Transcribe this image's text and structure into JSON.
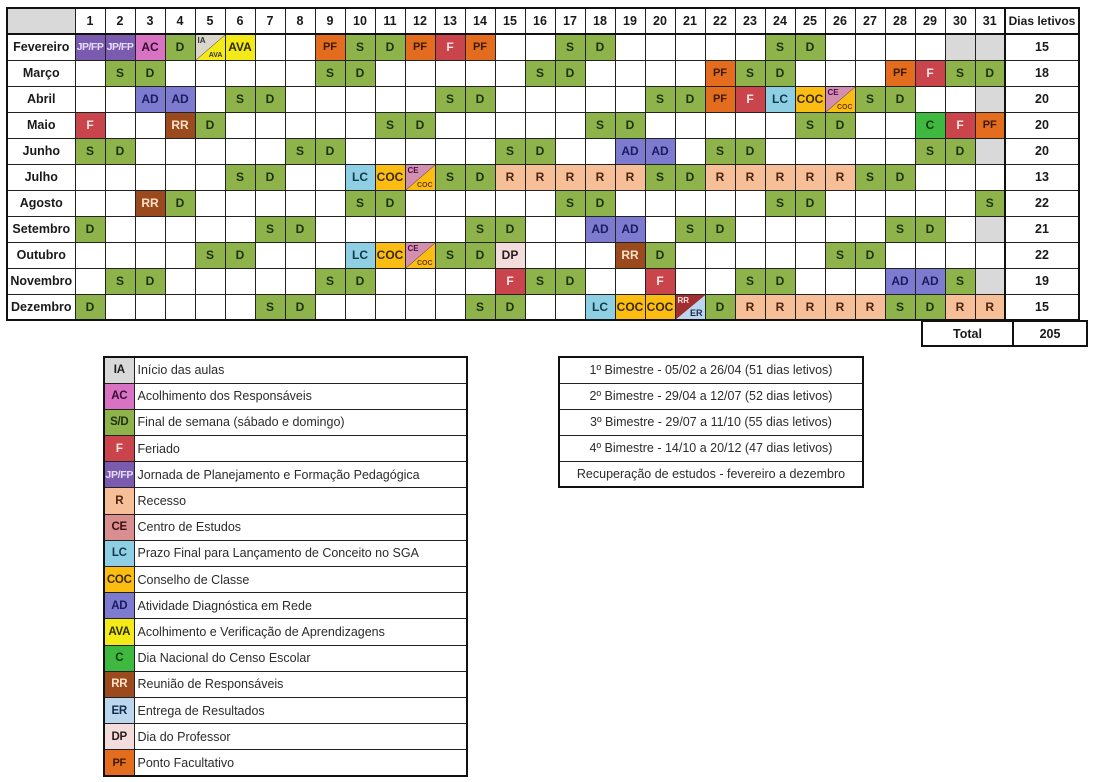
{
  "calendar": {
    "corner": "",
    "days": [
      "1",
      "2",
      "3",
      "4",
      "5",
      "6",
      "7",
      "8",
      "9",
      "10",
      "11",
      "12",
      "13",
      "14",
      "15",
      "16",
      "17",
      "18",
      "19",
      "20",
      "21",
      "22",
      "23",
      "24",
      "25",
      "26",
      "27",
      "28",
      "29",
      "30",
      "31"
    ],
    "dias_letivos_header": "Dias letivos",
    "months": [
      {
        "name": "Fevereiro",
        "dias": "15",
        "cells": {
          "1": "JP",
          "2": "JP",
          "3": "AC",
          "4": "D",
          "5": "IA/AVA",
          "6": "AVA",
          "9": "PF",
          "10": "S",
          "11": "D",
          "12": "PF",
          "13": "F",
          "14": "PF",
          "17": "S",
          "18": "D",
          "24": "S",
          "25": "D",
          "30": "grey",
          "31": "grey"
        }
      },
      {
        "name": "Março",
        "dias": "18",
        "cells": {
          "2": "S",
          "3": "D",
          "9": "S",
          "10": "D",
          "16": "S",
          "17": "D",
          "22": "PF",
          "23": "S",
          "24": "D",
          "28": "PF",
          "29": "F",
          "30": "S",
          "31": "D"
        }
      },
      {
        "name": "Abril",
        "dias": "20",
        "cells": {
          "3": "AD",
          "4": "AD",
          "6": "S",
          "7": "D",
          "13": "S",
          "14": "D",
          "20": "S",
          "21": "D",
          "22": "PF",
          "23": "F",
          "24": "LC",
          "25": "COC",
          "26": "CE/COC",
          "27": "S",
          "28": "D",
          "31": "grey"
        }
      },
      {
        "name": "Maio",
        "dias": "20",
        "cells": {
          "1": "F",
          "4": "RR",
          "5": "D",
          "11": "S",
          "12": "D",
          "18": "S",
          "19": "D",
          "25": "S",
          "26": "D",
          "29": "C",
          "30": "F",
          "31": "PF"
        }
      },
      {
        "name": "Junho",
        "dias": "20",
        "cells": {
          "1": "S",
          "2": "D",
          "8": "S",
          "9": "D",
          "15": "S",
          "16": "D",
          "19": "AD",
          "20": "AD",
          "22": "S",
          "23": "D",
          "29": "S",
          "30": "D",
          "31": "grey"
        }
      },
      {
        "name": "Julho",
        "dias": "13",
        "cells": {
          "6": "S",
          "7": "D",
          "10": "LC",
          "11": "COC",
          "12": "CE/COC",
          "13": "S",
          "14": "D",
          "15": "R",
          "16": "R",
          "17": "R",
          "18": "R",
          "19": "R",
          "20": "S",
          "21": "D",
          "22": "R",
          "23": "R",
          "24": "R",
          "25": "R",
          "26": "R",
          "27": "S",
          "28": "D"
        }
      },
      {
        "name": "Agosto",
        "dias": "22",
        "cells": {
          "3": "RR",
          "4": "D",
          "10": "S",
          "11": "D",
          "17": "S",
          "18": "D",
          "24": "S",
          "25": "D",
          "31": "S"
        }
      },
      {
        "name": "Setembro",
        "dias": "21",
        "cells": {
          "1": "D",
          "7": "S",
          "8": "D",
          "14": "S",
          "15": "D",
          "18": "AD",
          "19": "AD",
          "21": "S",
          "22": "D",
          "28": "S",
          "29": "D",
          "31": "grey"
        }
      },
      {
        "name": "Outubro",
        "dias": "22",
        "cells": {
          "5": "S",
          "6": "D",
          "10": "LC",
          "11": "COC",
          "12": "CE/COC",
          "13": "S",
          "14": "D",
          "15": "DP",
          "19": "RR",
          "20": "D",
          "26": "S",
          "27": "D"
        }
      },
      {
        "name": "Novembro",
        "dias": "19",
        "cells": {
          "2": "S",
          "3": "D",
          "9": "S",
          "10": "D",
          "15": "F",
          "16": "S",
          "17": "D",
          "20": "F",
          "23": "S",
          "24": "D",
          "28": "AD",
          "29": "AD",
          "30": "S",
          "31": "grey"
        }
      },
      {
        "name": "Dezembro",
        "dias": "15",
        "cells": {
          "1": "D",
          "7": "S",
          "8": "D",
          "14": "S",
          "15": "D",
          "18": "LC",
          "19": "COC",
          "20": "COC",
          "21": "RR/ER",
          "22": "D",
          "23": "R",
          "24": "R",
          "25": "R",
          "26": "R",
          "27": "R",
          "28": "S",
          "29": "D",
          "30": "R",
          "31": "R"
        }
      }
    ],
    "code_labels": {
      "JP": "JP/FP",
      "S": "S",
      "D": "D",
      "AC": "AC",
      "PF": "PF",
      "F": "F",
      "AVA": "AVA",
      "AD": "AD",
      "RR": "RR",
      "LC": "LC",
      "COC": "COC",
      "C": "C",
      "R": "R",
      "DP": "DP",
      "grey": ""
    },
    "split_labels": {
      "IA/AVA": {
        "a": "IA",
        "b": "AVA",
        "cls": "split-ia"
      },
      "CE/COC": {
        "a": "CE",
        "b": "COC",
        "cls": "split-ce"
      },
      "RR/ER": {
        "a": "RR",
        "b": "ER",
        "cls": "split-rr"
      }
    }
  },
  "total": {
    "label": "Total",
    "value": "205"
  },
  "legend": [
    {
      "code": "IA",
      "cls": "c-IA",
      "desc": "Início das aulas"
    },
    {
      "code": "AC",
      "cls": "c-AC",
      "desc": "Acolhimento dos Responsáveis"
    },
    {
      "code": "S/D",
      "cls": "c-SD",
      "desc": "Final de semana (sábado e domingo)"
    },
    {
      "code": "F",
      "cls": "c-F",
      "desc": "Feriado"
    },
    {
      "code": "JP/FP",
      "cls": "c-JP",
      "desc": "Jornada de Planejamento e Formação Pedagógica"
    },
    {
      "code": "R",
      "cls": "c-R",
      "desc": "Recesso"
    },
    {
      "code": "CE",
      "cls": "c-CE",
      "desc": "Centro de Estudos"
    },
    {
      "code": "LC",
      "cls": "c-LC",
      "desc": "Prazo Final para Lançamento de Conceito no SGA"
    },
    {
      "code": "COC",
      "cls": "c-COC",
      "desc": "Conselho de Classe"
    },
    {
      "code": "AD",
      "cls": "c-AD",
      "desc": "Atividade Diagnóstica em Rede"
    },
    {
      "code": "AVA",
      "cls": "c-AVA",
      "desc": "Acolhimento e Verificação de Aprendizagens"
    },
    {
      "code": "C",
      "cls": "c-C",
      "desc": "Dia Nacional do Censo Escolar"
    },
    {
      "code": "RR",
      "cls": "c-RR",
      "desc": "Reunião de Responsáveis"
    },
    {
      "code": "ER",
      "cls": "c-ER",
      "desc": "Entrega de Resultados"
    },
    {
      "code": "DP",
      "cls": "c-DP",
      "desc": "Dia do Professor"
    },
    {
      "code": "PF",
      "cls": "c-PF",
      "desc": "Ponto Facultativo"
    }
  ],
  "bimestres": [
    "1º Bimestre - 05/02 a 26/04 (51 dias letivos)",
    "2º Bimestre - 29/04 a 12/07 (52 dias letivos)",
    "3º Bimestre - 29/07 a 11/10 (55 dias letivos)",
    "4º Bimestre - 14/10 a 20/12 (47 dias letivos)",
    "Recuperação de estudos - fevereiro a dezembro"
  ]
}
